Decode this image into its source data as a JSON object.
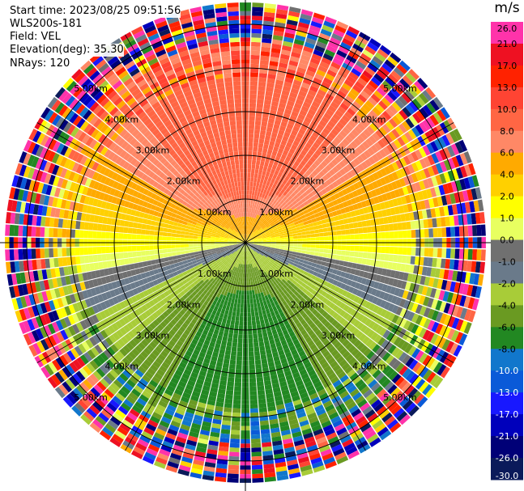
{
  "header": {
    "start_time": "Start time: 2023/08/25 09:51:56",
    "instrument": "WLS200s-181",
    "field": "Field: VEL",
    "elevation": "Elevation(deg): 35.30",
    "nrays": "NRays: 120"
  },
  "colorbar": {
    "unit": "m/s",
    "ticks": [
      "26.0",
      "21.0",
      "17.0",
      "13.0",
      "10.0",
      "8.0",
      "6.0",
      "4.0",
      "2.0",
      "1.0",
      "0.0",
      "-1.0",
      "-2.0",
      "-4.0",
      "-6.0",
      "-8.0",
      "-10.0",
      "-13.0",
      "-17.0",
      "-21.0",
      "-26.0",
      "-30.0"
    ],
    "colors": [
      "#ff33aa",
      "#ee1122",
      "#ff2200",
      "#ff4433",
      "#ff6644",
      "#ff8866",
      "#ffaa00",
      "#ffd000",
      "#ffff00",
      "#e8ff60",
      "#707070",
      "#6a7a8a",
      "#a8cc38",
      "#6a9a22",
      "#228822",
      "#1177cc",
      "#0a5ad8",
      "#1818ff",
      "#0000bb",
      "#000077",
      "#0a1a5a"
    ]
  },
  "chart_data": {
    "type": "polar-ppi",
    "field": "VEL",
    "units": "m/s",
    "nrays": 120,
    "elevation_deg": 35.3,
    "range_rings_km": [
      1.0,
      2.0,
      3.0,
      4.0,
      5.0
    ],
    "ring_labels": [
      "1.00km",
      "2.00km",
      "3.00km",
      "4.00km",
      "5.00km"
    ],
    "max_range_km": 5.5,
    "spoke_angles_deg": [
      0,
      30,
      60,
      90,
      120,
      150,
      180,
      210,
      240,
      270,
      300,
      330
    ],
    "velocity_pattern": {
      "north_sector": "6.0 to 10.0",
      "east_west_axis": "0.0 to 4.0",
      "south_sector": "-6.0 to -10.0",
      "outer_ranges": "noisy"
    }
  }
}
